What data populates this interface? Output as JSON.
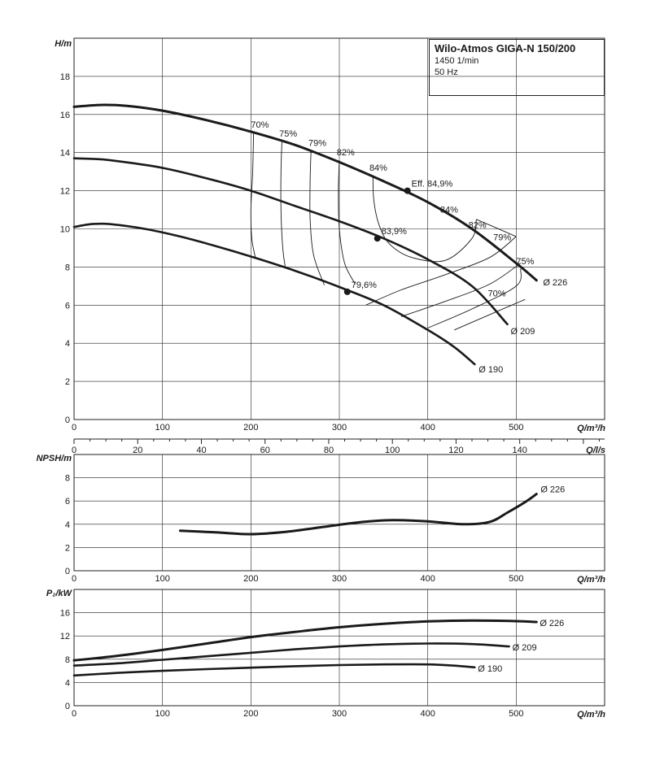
{
  "title_box": {
    "title": "Wilo-Atmos GIGA-N 150/200",
    "speed": "1450 1/min",
    "frequency": "50 Hz"
  },
  "chart_data": [
    {
      "id": "head",
      "type": "line",
      "ylabel": "H/m",
      "xlabel": "Q/m³/h",
      "xlim": [
        0,
        600
      ],
      "ylim": [
        0,
        20
      ],
      "x_ticks": [
        0,
        100,
        200,
        300,
        400,
        500
      ],
      "y_ticks": [
        0,
        2,
        4,
        6,
        8,
        10,
        12,
        14,
        16,
        18
      ],
      "secondary_x": {
        "label": "Q/l/s",
        "ticks": [
          0,
          20,
          40,
          60,
          80,
          100,
          120,
          140
        ],
        "lim": [
          0,
          166.67
        ]
      },
      "grid": true,
      "series": [
        {
          "name": "Ø 226",
          "x": [
            0,
            30,
            60,
            100,
            150,
            200,
            250,
            300,
            350,
            400,
            450,
            500,
            523
          ],
          "y": [
            16.4,
            16.5,
            16.45,
            16.2,
            15.7,
            15.1,
            14.4,
            13.5,
            12.5,
            11.4,
            10.0,
            8.2,
            7.3
          ]
        },
        {
          "name": "Ø 209",
          "x": [
            0,
            30,
            50,
            100,
            150,
            200,
            250,
            300,
            350,
            400,
            450,
            490
          ],
          "y": [
            13.7,
            13.65,
            13.55,
            13.2,
            12.65,
            12.0,
            11.2,
            10.4,
            9.5,
            8.4,
            7.0,
            5.0
          ]
        },
        {
          "name": "Ø 190",
          "x": [
            0,
            20,
            40,
            80,
            120,
            160,
            200,
            250,
            300,
            350,
            400,
            430,
            453
          ],
          "y": [
            10.1,
            10.25,
            10.25,
            10.0,
            9.6,
            9.1,
            8.55,
            7.8,
            6.95,
            6.0,
            4.7,
            3.8,
            2.9
          ]
        }
      ],
      "best_efficiency_points": [
        {
          "series": "Ø 226",
          "label": "Eff. 84,9%",
          "x": 377,
          "y": 12.0
        },
        {
          "series": "Ø 209",
          "label": "83,9%",
          "x": 343,
          "y": 9.5
        },
        {
          "series": "Ø 190",
          "label": "79,6%",
          "x": 309,
          "y": 6.7
        }
      ],
      "efficiency_lines": [
        {
          "label": "70%",
          "x": [
            203,
            202,
            200,
            201,
            205
          ],
          "y": [
            15.0,
            13.0,
            11.0,
            9.5,
            8.5
          ]
        },
        {
          "label": "75%",
          "x": [
            235,
            234,
            234,
            236,
            239
          ],
          "y": [
            14.55,
            13.0,
            11.0,
            9.0,
            7.95
          ]
        },
        {
          "label": "79%",
          "x": [
            268,
            267,
            267,
            271,
            283
          ],
          "y": [
            14.1,
            12.5,
            10.5,
            8.6,
            7.05
          ]
        },
        {
          "label": "82%",
          "x": [
            300,
            299,
            300,
            306,
            318
          ],
          "y": [
            13.6,
            12.0,
            10.0,
            8.2,
            7.1
          ]
        },
        {
          "label": "84%",
          "x": [
            338,
            339,
            345,
            357,
            382,
            420,
            450,
            455
          ],
          "y": [
            12.8,
            11.5,
            10.2,
            9.2,
            8.5,
            8.35,
            9.5,
            10.5
          ]
        },
        {
          "label": "84%",
          "x": [
            500,
            455
          ],
          "y": [
            9.6,
            10.5
          ]
        },
        {
          "label": "82%",
          "x": [
            330,
            370,
            420,
            470,
            500
          ],
          "y": [
            6.0,
            6.8,
            7.6,
            8.5,
            9.6
          ]
        },
        {
          "label": "79%",
          "x": [
            370,
            420,
            470,
            505
          ],
          "y": [
            5.4,
            6.2,
            7.1,
            8.2
          ]
        },
        {
          "label": "75%",
          "x": [
            400,
            450,
            500,
            505
          ],
          "y": [
            4.8,
            5.8,
            7.0,
            7.9
          ]
        },
        {
          "label": "70%",
          "x": [
            430,
            480,
            510
          ],
          "y": [
            4.7,
            5.7,
            6.3
          ]
        }
      ],
      "efficiency_labels": [
        {
          "label": "70%",
          "x": 200,
          "y": 15.3
        },
        {
          "label": "75%",
          "x": 232,
          "y": 14.85
        },
        {
          "label": "79%",
          "x": 265,
          "y": 14.35
        },
        {
          "label": "82%",
          "x": 297,
          "y": 13.85
        },
        {
          "label": "84%",
          "x": 334,
          "y": 13.05
        },
        {
          "label": "84%",
          "x": 414,
          "y": 10.85
        },
        {
          "label": "82%",
          "x": 446,
          "y": 10.05
        },
        {
          "label": "79%",
          "x": 474,
          "y": 9.4
        },
        {
          "label": "75%",
          "x": 500,
          "y": 8.15
        },
        {
          "label": "70%",
          "x": 468,
          "y": 6.45
        }
      ]
    },
    {
      "id": "npsh",
      "type": "line",
      "ylabel": "NPSH/m",
      "xlabel": "Q/m³/h",
      "xlim": [
        0,
        600
      ],
      "ylim": [
        0,
        10
      ],
      "x_ticks": [
        0,
        100,
        200,
        300,
        400,
        500
      ],
      "y_ticks": [
        0,
        2,
        4,
        6,
        8
      ],
      "grid": true,
      "series": [
        {
          "name": "Ø 226",
          "x": [
            120,
            160,
            200,
            240,
            280,
            320,
            360,
            400,
            440,
            470,
            490,
            510,
            523
          ],
          "y": [
            3.45,
            3.3,
            3.15,
            3.35,
            3.75,
            4.15,
            4.35,
            4.25,
            4.0,
            4.2,
            5.0,
            5.9,
            6.6
          ]
        }
      ]
    },
    {
      "id": "power",
      "type": "line",
      "ylabel": "P₂/kW",
      "xlabel": "Q/m³/h",
      "xlim": [
        0,
        600
      ],
      "ylim": [
        0,
        20
      ],
      "x_ticks": [
        0,
        100,
        200,
        300,
        400,
        500
      ],
      "y_ticks": [
        0,
        4,
        8,
        12,
        16
      ],
      "grid": true,
      "series": [
        {
          "name": "Ø 226",
          "x": [
            0,
            50,
            100,
            150,
            200,
            250,
            300,
            350,
            400,
            450,
            500,
            523
          ],
          "y": [
            7.8,
            8.6,
            9.6,
            10.7,
            11.8,
            12.7,
            13.5,
            14.1,
            14.5,
            14.65,
            14.55,
            14.4
          ]
        },
        {
          "name": "Ø 209",
          "x": [
            0,
            50,
            100,
            150,
            200,
            250,
            300,
            350,
            400,
            450,
            492
          ],
          "y": [
            6.9,
            7.3,
            7.9,
            8.5,
            9.1,
            9.7,
            10.2,
            10.55,
            10.7,
            10.6,
            10.2
          ]
        },
        {
          "name": "Ø 190",
          "x": [
            0,
            50,
            100,
            150,
            200,
            250,
            300,
            350,
            400,
            430,
            453
          ],
          "y": [
            5.2,
            5.65,
            6.0,
            6.3,
            6.55,
            6.8,
            7.0,
            7.1,
            7.1,
            6.9,
            6.6
          ]
        }
      ]
    }
  ]
}
